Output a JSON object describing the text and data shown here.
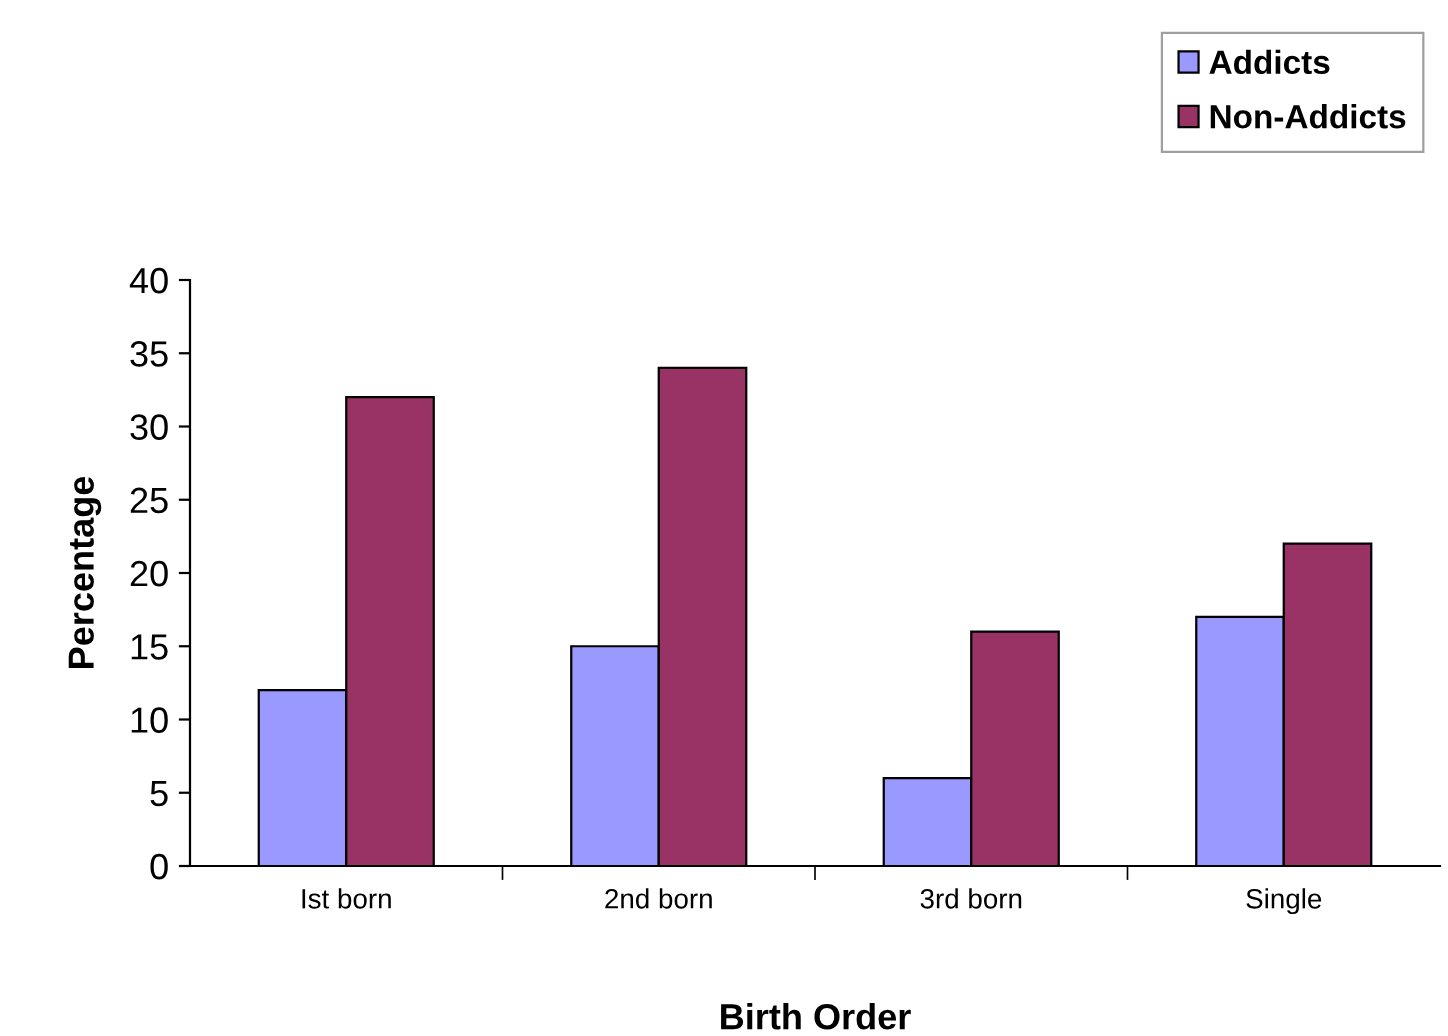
{
  "chart_data": {
    "type": "bar",
    "xlabel": "Birth Order",
    "ylabel": "Percentage",
    "categories": [
      "Ist born",
      "2nd born",
      "3rd born",
      "Single"
    ],
    "series": [
      {
        "name": "Addicts",
        "color": "#9999ff",
        "values": [
          12,
          15,
          6,
          17
        ]
      },
      {
        "name": "Non-Addicts",
        "color": "#993366",
        "values": [
          32,
          34,
          16,
          22
        ]
      }
    ],
    "ylim": [
      0,
      40
    ],
    "yticks": [
      0,
      5,
      10,
      15,
      20,
      25,
      30,
      35,
      40
    ],
    "grid": false,
    "legend": "top right"
  }
}
